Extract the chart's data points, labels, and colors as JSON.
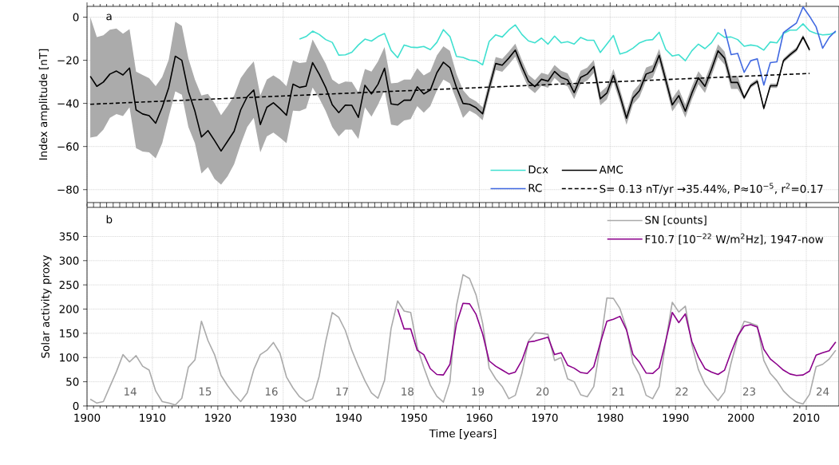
{
  "chart_data": [
    {
      "type": "line",
      "xlim": [
        1900,
        2015
      ],
      "ylim": [
        -86,
        5
      ],
      "xticks": [
        1900,
        1910,
        1920,
        1930,
        1940,
        1950,
        1960,
        1970,
        1980,
        1990,
        2000,
        2010
      ],
      "yticks": [
        {
          "value": 0,
          "label": "0"
        },
        {
          "value": -20,
          "label": "−20"
        },
        {
          "value": -40,
          "label": "−40"
        },
        {
          "value": -60,
          "label": "−60"
        },
        {
          "value": -80,
          "label": "−80"
        }
      ],
      "tick_labels": "y",
      "grid": true,
      "legend": "bottom right",
      "ylabel": "Index amplitude [nT]",
      "annotations": [
        "a"
      ],
      "x": [
        1900.5,
        1901.5,
        1902.5,
        1903.5,
        1904.5,
        1905.5,
        1906.5,
        1907.5,
        1908.5,
        1909.5,
        1910.5,
        1911.5,
        1912.5,
        1913.5,
        1914.5,
        1915.5,
        1916.5,
        1917.5,
        1918.5,
        1919.5,
        1920.5,
        1921.5,
        1922.5,
        1923.5,
        1924.5,
        1925.5,
        1926.5,
        1927.5,
        1928.5,
        1929.5,
        1930.5,
        1931.5,
        1932.5,
        1933.5,
        1934.5,
        1935.5,
        1936.5,
        1937.5,
        1938.5,
        1939.5,
        1940.5,
        1941.5,
        1942.5,
        1943.5,
        1944.5,
        1945.5,
        1946.5,
        1947.5,
        1948.5,
        1949.5,
        1950.5,
        1951.5,
        1952.5,
        1953.5,
        1954.5,
        1955.5,
        1956.5,
        1957.5,
        1958.5,
        1959.5,
        1960.5,
        1961.5,
        1962.5,
        1963.5,
        1964.5,
        1965.5,
        1966.5,
        1967.5,
        1968.5,
        1969.5,
        1970.5,
        1971.5,
        1972.5,
        1973.5,
        1974.5,
        1975.5,
        1976.5,
        1977.5,
        1978.5,
        1979.5,
        1980.5,
        1981.5,
        1982.5,
        1983.5,
        1984.5,
        1985.5,
        1986.5,
        1987.5,
        1988.5,
        1989.5,
        1990.5,
        1991.5,
        1992.5,
        1993.5,
        1994.5,
        1995.5,
        1996.5,
        1997.5,
        1998.5,
        1999.5,
        2000.5,
        2001.5,
        2002.5,
        2003.5,
        2004.5,
        2005.5,
        2006.5,
        2007.5,
        2008.5,
        2009.5,
        2010.5,
        2011.5,
        2012.5,
        2013.5,
        2014.5
      ],
      "series": [
        {
          "name": "Dcx",
          "color": "#40e0d0",
          "values": [
            null,
            null,
            null,
            null,
            null,
            null,
            null,
            null,
            null,
            null,
            null,
            null,
            null,
            null,
            null,
            null,
            null,
            null,
            null,
            null,
            null,
            null,
            null,
            null,
            null,
            null,
            null,
            null,
            null,
            null,
            null,
            null,
            -10.2,
            -9.0,
            -6.5,
            -8.0,
            -10.4,
            -11.7,
            -17.6,
            -17.5,
            -16.3,
            -12.9,
            -10.2,
            -11.1,
            -9.0,
            -7.6,
            -15.4,
            -18.8,
            -12.9,
            -13.9,
            -14.1,
            -13.6,
            -15.1,
            -11.7,
            -5.8,
            -9.0,
            -18.2,
            -18.7,
            -19.9,
            -20.2,
            -22.1,
            -11.3,
            -8.2,
            -9.2,
            -6.0,
            -3.6,
            -8.0,
            -11.0,
            -11.9,
            -9.7,
            -12.5,
            -8.8,
            -11.9,
            -11.4,
            -12.5,
            -9.4,
            -10.7,
            -10.7,
            -16.4,
            -12.5,
            -8.5,
            -17.1,
            -16.2,
            -14.4,
            -11.9,
            -10.7,
            -10.4,
            -7.0,
            -15.0,
            -18.0,
            -17.4,
            -20.2,
            -15.6,
            -12.5,
            -14.6,
            -11.9,
            -7.2,
            -9.4,
            -9.2,
            -10.4,
            -13.5,
            -12.9,
            -13.4,
            -15.3,
            -11.5,
            -11.9,
            -7.6,
            -6.0,
            -6.0,
            -3.1,
            -6.4,
            -7.6,
            -8.2,
            -8.0,
            -7.0
          ]
        },
        {
          "name": "RC",
          "color": "#4169e1",
          "x": [
            1997.5,
            1998.5,
            1999.5,
            2000.5,
            2001.5,
            2002.5,
            2003.5,
            2004.5,
            2005.5,
            2006.5,
            2007.5,
            2008.5,
            2009.5,
            2010.5,
            2011.5,
            2012.5,
            2013.5,
            2014.5
          ],
          "values": [
            -5.5,
            -17.4,
            -16.8,
            -25.6,
            -20.2,
            -19.3,
            -31.5,
            -21.1,
            -20.7,
            -7.2,
            -4.9,
            -2.7,
            4.7,
            0.4,
            -4.5,
            -14.4,
            -9.4,
            -6.4
          ]
        },
        {
          "name": "AMC",
          "color": "#000000",
          "values": [
            -27.4,
            -32.1,
            -30.1,
            -26.4,
            -25.0,
            -26.8,
            -23.6,
            -43.0,
            -44.9,
            -45.7,
            -49.2,
            -41.8,
            -32.6,
            -18.1,
            -20.0,
            -34.4,
            -43.6,
            -55.6,
            -52.6,
            -57.2,
            -62.1,
            -57.5,
            -52.9,
            -43.0,
            -36.9,
            -33.8,
            -49.8,
            -41.8,
            -39.7,
            -42.4,
            -45.5,
            -31.1,
            -32.6,
            -32.0,
            -21.1,
            -26.4,
            -32.6,
            -40.6,
            -44.3,
            -40.8,
            -40.9,
            -46.5,
            -31.6,
            -35.6,
            -31.1,
            -23.7,
            -40.2,
            -40.7,
            -38.5,
            -38.5,
            -32.3,
            -35.6,
            -33.8,
            -25.8,
            -20.9,
            -23.4,
            -32.6,
            -40.0,
            -40.4,
            -42.0,
            -44.8,
            -32.8,
            -21.5,
            -22.3,
            -19.0,
            -15.3,
            -22.9,
            -29.7,
            -32.2,
            -28.8,
            -29.7,
            -25.2,
            -27.9,
            -29.1,
            -35.0,
            -27.9,
            -26.4,
            -22.9,
            -37.9,
            -35.2,
            -27.0,
            -36.4,
            -46.9,
            -37.4,
            -34.0,
            -26.4,
            -25.2,
            -17.7,
            -29.1,
            -40.7,
            -36.4,
            -43.6,
            -35.2,
            -28.1,
            -32.1,
            -24.2,
            -15.6,
            -19.0,
            -30.3,
            -30.3,
            -37.4,
            -31.8,
            -29.7,
            -42.3,
            -31.8,
            -31.8,
            -20.2,
            -17.4,
            -15.0,
            -9.2,
            -15.2,
            null,
            null,
            null,
            null
          ],
          "upper": [
            0,
            -9.2,
            -8.4,
            -5.8,
            -5.3,
            -7.7,
            -5.5,
            -25.2,
            -26.8,
            -28.3,
            -32.0,
            -27.7,
            -19.7,
            -2.1,
            -4.1,
            -19.1,
            -28.9,
            -36.3,
            -35.6,
            -39.9,
            -45.5,
            -41.2,
            -36.3,
            -28.3,
            -24.0,
            -20.5,
            -36.3,
            -28.9,
            -27.0,
            -28.9,
            -32.0,
            -20.1,
            -21.3,
            -20.9,
            -10.4,
            -16.0,
            -21.5,
            -28.9,
            -31.1,
            -29.9,
            -30.1,
            -35.0,
            -24.0,
            -25.2,
            -20.5,
            -13.9,
            -30.7,
            -30.4,
            -28.9,
            -28.9,
            -23.7,
            -27.0,
            -25.2,
            -17.8,
            -13.5,
            -15.6,
            -26.4,
            -33.8,
            -37.4,
            -39.0,
            -41.8,
            -29.8,
            -18.5,
            -19.3,
            -16.0,
            -12.3,
            -19.9,
            -26.7,
            -29.2,
            -25.8,
            -26.7,
            -22.2,
            -24.9,
            -26.1,
            -32.0,
            -24.9,
            -23.4,
            -19.9,
            -34.9,
            -32.2,
            -24.0,
            -33.4,
            -43.9,
            -34.4,
            -31.0,
            -23.4,
            -22.2,
            -14.7,
            -26.1,
            -37.7,
            -33.4,
            -40.6,
            -32.2,
            -25.1,
            -29.1,
            -21.2,
            -12.6,
            -16.0,
            -27.3,
            -27.3,
            -36.4,
            -30.8,
            -28.7,
            -41.3,
            -30.8,
            -30.8,
            -19.2,
            -16.4,
            -14.0,
            -8.2,
            -14.2,
            null,
            null,
            null,
            null
          ],
          "lower": [
            -55.9,
            -55.3,
            -52.2,
            -46.7,
            -44.9,
            -45.9,
            -41.8,
            -60.8,
            -62.3,
            -62.7,
            -65.5,
            -58.4,
            -46.1,
            -34.4,
            -36.0,
            -51.0,
            -58.4,
            -72.5,
            -69.5,
            -75.0,
            -77.7,
            -73.8,
            -68.2,
            -59.0,
            -51.0,
            -46.7,
            -62.7,
            -55.3,
            -53.5,
            -55.9,
            -58.4,
            -43.4,
            -43.6,
            -42.4,
            -32.6,
            -37.5,
            -43.6,
            -51.0,
            -55.3,
            -52.2,
            -52.2,
            -56.5,
            -41.8,
            -46.1,
            -40.6,
            -33.8,
            -49.8,
            -50.4,
            -47.9,
            -47.3,
            -41.2,
            -44.3,
            -41.2,
            -34.0,
            -28.9,
            -30.7,
            -38.6,
            -46.7,
            -43.4,
            -45.0,
            -47.8,
            -35.8,
            -24.5,
            -25.3,
            -22.0,
            -18.3,
            -25.9,
            -32.7,
            -35.2,
            -31.8,
            -32.7,
            -28.2,
            -30.9,
            -32.1,
            -38.0,
            -30.9,
            -29.4,
            -25.9,
            -40.9,
            -38.2,
            -30.0,
            -39.4,
            -49.9,
            -40.4,
            -37.0,
            -29.4,
            -28.2,
            -20.7,
            -32.1,
            -43.7,
            -39.4,
            -46.6,
            -38.2,
            -31.1,
            -35.1,
            -27.2,
            -18.6,
            -22.0,
            -33.3,
            -33.3,
            -38.4,
            -32.8,
            -30.7,
            -43.3,
            -32.8,
            -32.8,
            -21.2,
            -18.4,
            -16.0,
            -10.2,
            -16.2,
            null,
            null,
            null,
            null
          ]
        },
        {
          "name": "S= 0.13 nT/yr →35.44%, P≈10$^{−5}$, r$^{2}$=0.17",
          "color": "#000000",
          "line_style": "dashed",
          "x": [
            1900.5,
            2010.5
          ],
          "values": [
            -40.4,
            -26.1
          ]
        }
      ]
    },
    {
      "type": "line",
      "xlim": [
        1900,
        2015
      ],
      "ylim": [
        0,
        410
      ],
      "xticks": [
        1900,
        1910,
        1920,
        1930,
        1940,
        1950,
        1960,
        1970,
        1980,
        1990,
        2000,
        2010
      ],
      "yticks": [
        0,
        50,
        100,
        150,
        200,
        250,
        300,
        350
      ],
      "grid": true,
      "legend": "top right",
      "xlabel": "Time [years]",
      "ylabel": "Solar activity proxy",
      "annotations": [
        "b",
        "14",
        "15",
        "16",
        "17",
        "18",
        "19",
        "20",
        "21",
        "22",
        "23",
        "24"
      ],
      "x": [
        1900.5,
        1901.5,
        1902.5,
        1903.5,
        1904.5,
        1905.5,
        1906.5,
        1907.5,
        1908.5,
        1909.5,
        1910.5,
        1911.5,
        1912.5,
        1913.5,
        1914.5,
        1915.5,
        1916.5,
        1917.5,
        1918.5,
        1919.5,
        1920.5,
        1921.5,
        1922.5,
        1923.5,
        1924.5,
        1925.5,
        1926.5,
        1927.5,
        1928.5,
        1929.5,
        1930.5,
        1931.5,
        1932.5,
        1933.5,
        1934.5,
        1935.5,
        1936.5,
        1937.5,
        1938.5,
        1939.5,
        1940.5,
        1941.5,
        1942.5,
        1943.5,
        1944.5,
        1945.5,
        1946.5,
        1947.5,
        1948.5,
        1949.5,
        1950.5,
        1951.5,
        1952.5,
        1953.5,
        1954.5,
        1955.5,
        1956.5,
        1957.5,
        1958.5,
        1959.5,
        1960.5,
        1961.5,
        1962.5,
        1963.5,
        1964.5,
        1965.5,
        1966.5,
        1967.5,
        1968.5,
        1969.5,
        1970.5,
        1971.5,
        1972.5,
        1973.5,
        1974.5,
        1975.5,
        1976.5,
        1977.5,
        1978.5,
        1979.5,
        1980.5,
        1981.5,
        1982.5,
        1983.5,
        1984.5,
        1985.5,
        1986.5,
        1987.5,
        1988.5,
        1989.5,
        1990.5,
        1991.5,
        1992.5,
        1993.5,
        1994.5,
        1995.5,
        1996.5,
        1997.5,
        1998.5,
        1999.5,
        2000.5,
        2001.5,
        2002.5,
        2003.5,
        2004.5,
        2005.5,
        2006.5,
        2007.5,
        2008.5,
        2009.5,
        2010.5,
        2011.5,
        2012.5,
        2013.5,
        2014.5
      ],
      "series": [
        {
          "name": "SN [counts]",
          "color": "#aaaaaa",
          "values": [
            14,
            6,
            9,
            40,
            71,
            106,
            91,
            104,
            82,
            74,
            31,
            9,
            6,
            2,
            16,
            80,
            95,
            175,
            135,
            106,
            63,
            42,
            24,
            9,
            27,
            75,
            106,
            115,
            131,
            109,
            60,
            37,
            19,
            9,
            15,
            61,
            133,
            193,
            183,
            156,
            115,
            82,
            52,
            27,
            16,
            53,
            160,
            217,
            196,
            193,
            122,
            80,
            43,
            20,
            8,
            50,
            207,
            271,
            263,
            229,
            171,
            78,
            56,
            40,
            15,
            22,
            67,
            134,
            151,
            150,
            148,
            94,
            100,
            56,
            50,
            23,
            19,
            40,
            127,
            223,
            222,
            201,
            160,
            89,
            64,
            22,
            15,
            40,
            133,
            214,
            194,
            206,
            127,
            75,
            45,
            27,
            11,
            29,
            89,
            141,
            175,
            171,
            166,
            94,
            67,
            52,
            31,
            18,
            8,
            4,
            24,
            81,
            86,
            97,
            115
          ]
        },
        {
          "name": "F10.7 [10$^{−22}$ W/m$^{2}$Hz], 1947-now",
          "color": "#8b008b",
          "values": [
            null,
            null,
            null,
            null,
            null,
            null,
            null,
            null,
            null,
            null,
            null,
            null,
            null,
            null,
            null,
            null,
            null,
            null,
            null,
            null,
            null,
            null,
            null,
            null,
            null,
            null,
            null,
            null,
            null,
            null,
            null,
            null,
            null,
            null,
            null,
            null,
            null,
            null,
            null,
            null,
            null,
            null,
            null,
            null,
            null,
            null,
            null,
            200,
            159,
            159,
            115,
            106,
            77,
            65,
            64,
            86,
            170,
            212,
            211,
            189,
            149,
            93,
            82,
            74,
            66,
            70,
            94,
            132,
            134,
            138,
            142,
            106,
            110,
            84,
            78,
            69,
            67,
            81,
            130,
            175,
            179,
            185,
            157,
            106,
            90,
            68,
            67,
            79,
            134,
            193,
            172,
            190,
            133,
            101,
            77,
            70,
            65,
            74,
            111,
            144,
            165,
            168,
            163,
            117,
            97,
            86,
            74,
            66,
            63,
            64,
            72,
            105,
            110,
            114,
            132
          ]
        }
      ]
    }
  ]
}
